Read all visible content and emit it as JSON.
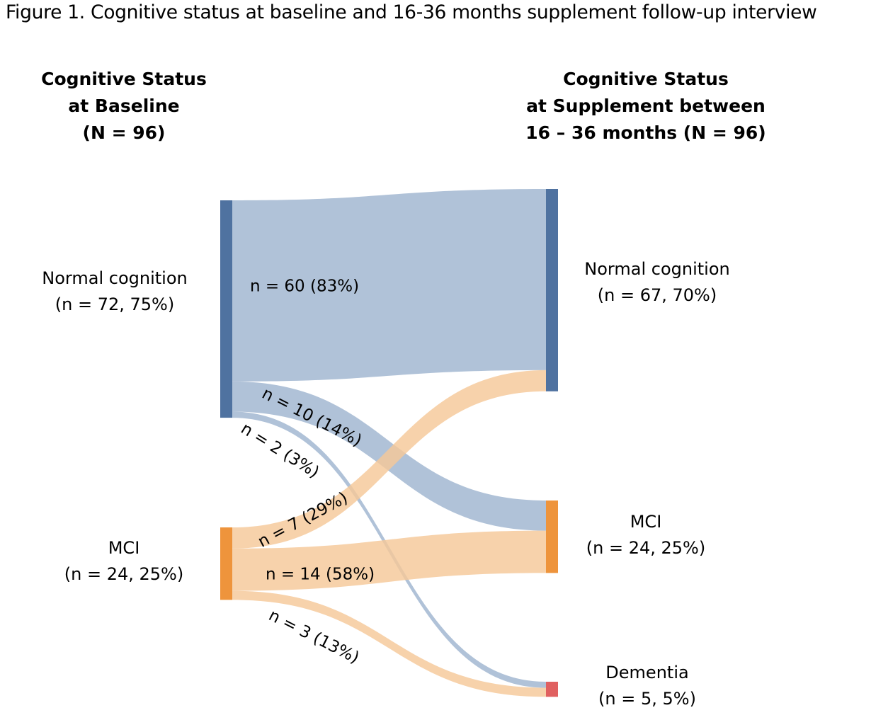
{
  "figure_title": "Figure 1. Cognitive status at baseline and 16-36 months supplement follow-up interview",
  "colors": {
    "normal_node": "#4f72a0",
    "normal_flow": "#9fb4cf",
    "mci_node": "#ee943c",
    "mci_flow": "#f5c898",
    "dementia_node": "#e06060"
  },
  "chart_data": {
    "type": "sankey",
    "total": 96,
    "left_heading": [
      "Cognitive Status",
      "at Baseline",
      "(N = 96)"
    ],
    "right_heading": [
      "Cognitive Status",
      "at Supplement between",
      "16 – 36 months (N = 96)"
    ],
    "left_nodes": [
      {
        "id": "normal",
        "name": "Normal cognition",
        "detail": "(n = 72, 75%)",
        "n": 72
      },
      {
        "id": "mci",
        "name": "MCI",
        "detail": "(n = 24, 25%)",
        "n": 24
      }
    ],
    "right_nodes": [
      {
        "id": "normal",
        "name": "Normal cognition",
        "detail": "(n = 67, 70%)",
        "n": 67
      },
      {
        "id": "mci",
        "name": "MCI",
        "detail": "(n = 24, 25%)",
        "n": 24
      },
      {
        "id": "dementia",
        "name": "Dementia",
        "detail": "(n = 5, 5%)",
        "n": 5
      }
    ],
    "flows": [
      {
        "source": "normal",
        "target": "normal",
        "value": 60,
        "label": "n = 60 (83%)"
      },
      {
        "source": "normal",
        "target": "mci",
        "value": 10,
        "label": "n = 10 (14%)"
      },
      {
        "source": "normal",
        "target": "dementia",
        "value": 2,
        "label": "n = 2 (3%)"
      },
      {
        "source": "mci",
        "target": "normal",
        "value": 7,
        "label": "n = 7 (29%)"
      },
      {
        "source": "mci",
        "target": "mci",
        "value": 14,
        "label": "n = 14 (58%)"
      },
      {
        "source": "mci",
        "target": "dementia",
        "value": 3,
        "label": "n = 3 (13%)"
      }
    ]
  }
}
